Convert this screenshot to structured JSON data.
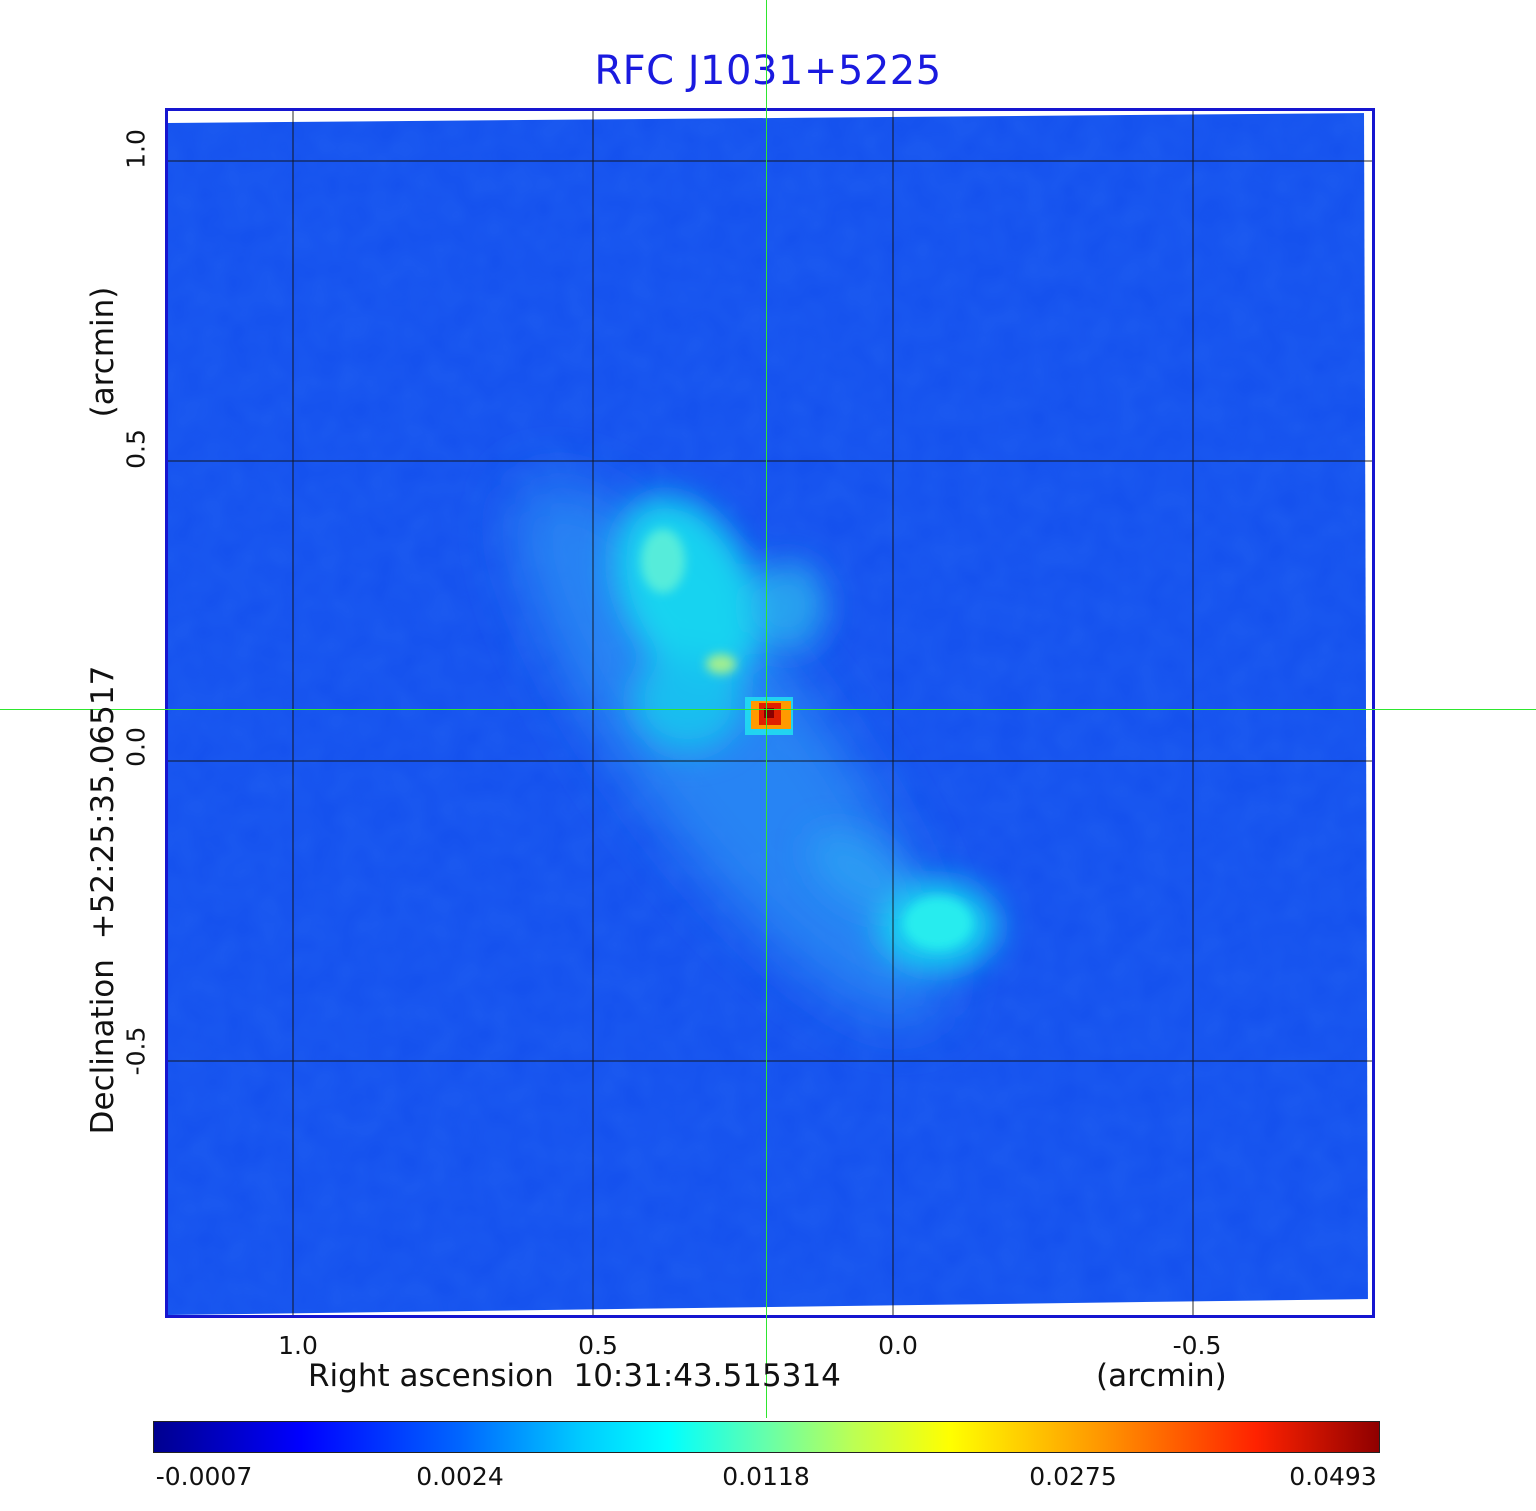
{
  "title": "RFC J1031+5225",
  "x_axis": {
    "label": "Right ascension  10:31:43.515314",
    "unit": "(arcmin)",
    "ticks": [
      "1.0",
      "0.5",
      "0.0",
      "-0.5"
    ]
  },
  "y_axis": {
    "label": "Declination  +52:25:35.06517",
    "unit": "(arcmin)",
    "ticks": [
      "1.0",
      "0.5",
      "0.0",
      "-0.5"
    ]
  },
  "colorbar": {
    "labels": [
      "-0.0007",
      "0.0024",
      "0.0118",
      "0.0275",
      "0.0493"
    ]
  },
  "colors": {
    "title": "#1a1adf",
    "frame": "#1616d0",
    "crosshair": "#2ee62e",
    "background_map": "#1450ee"
  }
}
